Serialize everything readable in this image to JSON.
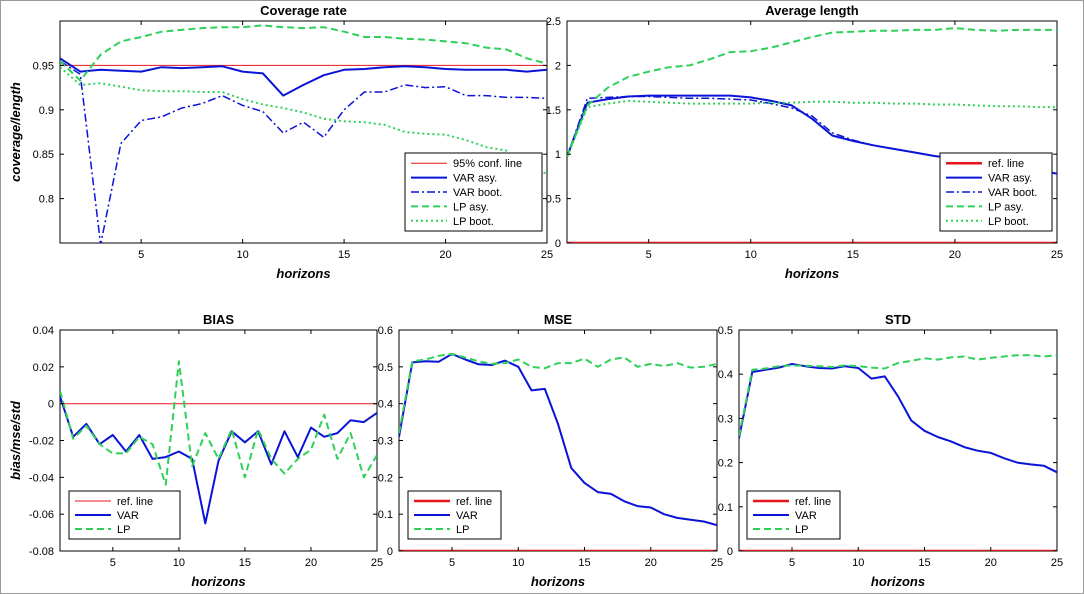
{
  "chart_data": [
    {
      "type": "line",
      "title": "Coverage rate",
      "xlabel": "horizons",
      "ylabel": "coverage/length",
      "xlim": [
        1,
        25
      ],
      "ylim": [
        0.75,
        1.0
      ],
      "xticks": [
        5,
        10,
        15,
        20,
        25
      ],
      "yticks": [
        0.8,
        0.85,
        0.9,
        0.95
      ],
      "ytick_labels": [
        "0.8",
        "0.85",
        "0.9",
        "0.95"
      ],
      "legend_position": "lower-right",
      "x": [
        1,
        2,
        3,
        4,
        5,
        6,
        7,
        8,
        9,
        10,
        11,
        12,
        13,
        14,
        15,
        16,
        17,
        18,
        19,
        20,
        21,
        22,
        23,
        24,
        25
      ],
      "series": [
        {
          "name": "95% conf. line",
          "color": "#e8141b",
          "style": "solid",
          "width": 1,
          "values": [
            0.95,
            0.95,
            0.95,
            0.95,
            0.95,
            0.95,
            0.95,
            0.95,
            0.95,
            0.95,
            0.95,
            0.95,
            0.95,
            0.95,
            0.95,
            0.95,
            0.95,
            0.95,
            0.95,
            0.95,
            0.95,
            0.95,
            0.95,
            0.95,
            0.95
          ]
        },
        {
          "name": "VAR asy.",
          "color": "#0a14d6",
          "style": "solid",
          "width": 2,
          "values": [
            0.958,
            0.943,
            0.945,
            0.944,
            0.943,
            0.948,
            0.947,
            0.948,
            0.949,
            0.943,
            0.941,
            0.916,
            0.928,
            0.939,
            0.945,
            0.946,
            0.948,
            0.949,
            0.948,
            0.946,
            0.945,
            0.945,
            0.945,
            0.943,
            0.945
          ]
        },
        {
          "name": "VAR boot.",
          "color": "#0a14d6",
          "style": "dashdot",
          "width": 1.5,
          "values": [
            0.955,
            0.94,
            0.748,
            0.862,
            0.888,
            0.892,
            0.902,
            0.907,
            0.916,
            0.905,
            0.898,
            0.874,
            0.886,
            0.869,
            0.9,
            0.92,
            0.92,
            0.928,
            0.925,
            0.926,
            0.916,
            0.916,
            0.914,
            0.914,
            0.913
          ]
        },
        {
          "name": "LP asy.",
          "color": "#2fd05a",
          "style": "dashed",
          "width": 2,
          "values": [
            0.955,
            0.933,
            0.962,
            0.977,
            0.982,
            0.988,
            0.99,
            0.992,
            0.993,
            0.993,
            0.995,
            0.993,
            0.992,
            0.993,
            0.988,
            0.982,
            0.982,
            0.98,
            0.979,
            0.977,
            0.975,
            0.97,
            0.968,
            0.958,
            0.952
          ]
        },
        {
          "name": "LP boot.",
          "color": "#2fd05a",
          "style": "dotted",
          "width": 2,
          "values": [
            0.948,
            0.928,
            0.93,
            0.926,
            0.922,
            0.921,
            0.921,
            0.92,
            0.92,
            0.912,
            0.906,
            0.902,
            0.897,
            0.89,
            0.887,
            0.886,
            0.883,
            0.875,
            0.873,
            0.872,
            0.866,
            0.858,
            0.854,
            0.836,
            0.828
          ]
        }
      ]
    },
    {
      "type": "line",
      "title": "Average length",
      "xlabel": "horizons",
      "ylabel": "",
      "xlim": [
        1,
        25
      ],
      "ylim": [
        0,
        2.5
      ],
      "xticks": [
        5,
        10,
        15,
        20,
        25
      ],
      "yticks": [
        0,
        0.5,
        1,
        1.5,
        2,
        2.5
      ],
      "ytick_labels": [
        "0",
        "0.5",
        "1",
        "1.5",
        "2",
        "2.5"
      ],
      "legend_position": "lower-right",
      "x": [
        1,
        2,
        3,
        4,
        5,
        6,
        7,
        8,
        9,
        10,
        11,
        12,
        13,
        14,
        15,
        16,
        17,
        18,
        19,
        20,
        21,
        22,
        23,
        24,
        25
      ],
      "series": [
        {
          "name": "ref. line",
          "color": "#e8141b",
          "style": "solid",
          "width": 2.5,
          "values": [
            0,
            0,
            0,
            0,
            0,
            0,
            0,
            0,
            0,
            0,
            0,
            0,
            0,
            0,
            0,
            0,
            0,
            0,
            0,
            0,
            0,
            0,
            0,
            0,
            0
          ]
        },
        {
          "name": "VAR asy.",
          "color": "#0a14d6",
          "style": "solid",
          "width": 2,
          "values": [
            0.97,
            1.58,
            1.62,
            1.65,
            1.66,
            1.66,
            1.66,
            1.66,
            1.66,
            1.64,
            1.6,
            1.55,
            1.4,
            1.21,
            1.15,
            1.1,
            1.06,
            1.02,
            0.98,
            0.95,
            0.92,
            0.89,
            0.85,
            0.82,
            0.78
          ]
        },
        {
          "name": "VAR boot.",
          "color": "#0a14d6",
          "style": "dashdot",
          "width": 1.5,
          "values": [
            0.97,
            1.63,
            1.64,
            1.65,
            1.65,
            1.64,
            1.63,
            1.63,
            1.62,
            1.61,
            1.57,
            1.52,
            1.43,
            1.24,
            1.16,
            1.1,
            1.06,
            1.02,
            0.98,
            0.95,
            0.92,
            0.89,
            0.85,
            0.82,
            0.78
          ]
        },
        {
          "name": "LP asy.",
          "color": "#2fd05a",
          "style": "dashed",
          "width": 2,
          "values": [
            0.97,
            1.55,
            1.75,
            1.87,
            1.93,
            1.98,
            2.0,
            2.07,
            2.15,
            2.16,
            2.2,
            2.26,
            2.32,
            2.37,
            2.38,
            2.39,
            2.39,
            2.4,
            2.4,
            2.42,
            2.4,
            2.39,
            2.4,
            2.4,
            2.4
          ]
        },
        {
          "name": "LP boot.",
          "color": "#2fd05a",
          "style": "dotted",
          "width": 2,
          "values": [
            0.97,
            1.53,
            1.57,
            1.6,
            1.59,
            1.58,
            1.57,
            1.57,
            1.57,
            1.57,
            1.58,
            1.58,
            1.59,
            1.59,
            1.58,
            1.58,
            1.57,
            1.57,
            1.56,
            1.56,
            1.55,
            1.54,
            1.54,
            1.53,
            1.53
          ]
        }
      ]
    },
    {
      "type": "line",
      "title": "BIAS",
      "xlabel": "horizons",
      "ylabel": "bias/mse/std",
      "xlim": [
        1,
        25
      ],
      "ylim": [
        -0.08,
        0.04
      ],
      "xticks": [
        5,
        10,
        15,
        20,
        25
      ],
      "yticks": [
        -0.08,
        -0.06,
        -0.04,
        -0.02,
        0,
        0.02,
        0.04
      ],
      "ytick_labels": [
        "-0.08",
        "-0.06",
        "-0.04",
        "-0.02",
        "0",
        "0.02",
        "0.04"
      ],
      "legend_position": "lower-left",
      "x": [
        1,
        2,
        3,
        4,
        5,
        6,
        7,
        8,
        9,
        10,
        11,
        12,
        13,
        14,
        15,
        16,
        17,
        18,
        19,
        20,
        21,
        22,
        23,
        24,
        25
      ],
      "series": [
        {
          "name": "ref. line",
          "color": "#e8141b",
          "style": "solid",
          "width": 1,
          "values": [
            0,
            0,
            0,
            0,
            0,
            0,
            0,
            0,
            0,
            0,
            0,
            0,
            0,
            0,
            0,
            0,
            0,
            0,
            0,
            0,
            0,
            0,
            0,
            0,
            0
          ]
        },
        {
          "name": "VAR",
          "color": "#0a14d6",
          "style": "solid",
          "width": 2,
          "values": [
            0.004,
            -0.018,
            -0.011,
            -0.022,
            -0.017,
            -0.026,
            -0.017,
            -0.03,
            -0.029,
            -0.026,
            -0.03,
            -0.065,
            -0.031,
            -0.015,
            -0.021,
            -0.015,
            -0.033,
            -0.015,
            -0.029,
            -0.013,
            -0.018,
            -0.016,
            -0.009,
            -0.01,
            -0.005
          ]
        },
        {
          "name": "LP",
          "color": "#2fd05a",
          "style": "dashed",
          "width": 2,
          "values": [
            0.007,
            -0.019,
            -0.012,
            -0.022,
            -0.027,
            -0.027,
            -0.018,
            -0.022,
            -0.044,
            0.023,
            -0.034,
            -0.016,
            -0.03,
            -0.014,
            -0.04,
            -0.014,
            -0.03,
            -0.038,
            -0.03,
            -0.025,
            -0.006,
            -0.03,
            -0.016,
            -0.04,
            -0.028
          ]
        }
      ]
    },
    {
      "type": "line",
      "title": "MSE",
      "xlabel": "horizons",
      "ylabel": "",
      "xlim": [
        1,
        25
      ],
      "ylim": [
        0,
        0.6
      ],
      "xticks": [
        5,
        10,
        15,
        20,
        25
      ],
      "yticks": [
        0,
        0.1,
        0.2,
        0.3,
        0.4,
        0.5,
        0.6
      ],
      "ytick_labels": [
        "0",
        "0.1",
        "0.2",
        "0.3",
        "0.4",
        "0.5",
        "0.6"
      ],
      "legend_position": "lower-left",
      "x": [
        1,
        2,
        3,
        4,
        5,
        6,
        7,
        8,
        9,
        10,
        11,
        12,
        13,
        14,
        15,
        16,
        17,
        18,
        19,
        20,
        21,
        22,
        23,
        24,
        25
      ],
      "series": [
        {
          "name": "ref. line",
          "color": "#e8141b",
          "style": "solid",
          "width": 2.5,
          "values": [
            0,
            0,
            0,
            0,
            0,
            0,
            0,
            0,
            0,
            0,
            0,
            0,
            0,
            0,
            0,
            0,
            0,
            0,
            0,
            0,
            0,
            0,
            0,
            0,
            0
          ]
        },
        {
          "name": "VAR",
          "color": "#0a14d6",
          "style": "solid",
          "width": 2,
          "values": [
            0.31,
            0.512,
            0.515,
            0.514,
            0.535,
            0.52,
            0.507,
            0.505,
            0.517,
            0.5,
            0.436,
            0.44,
            0.345,
            0.225,
            0.185,
            0.16,
            0.155,
            0.135,
            0.122,
            0.118,
            0.1,
            0.09,
            0.085,
            0.08,
            0.07
          ]
        },
        {
          "name": "LP",
          "color": "#2fd05a",
          "style": "dashed",
          "width": 2,
          "values": [
            0.32,
            0.515,
            0.52,
            0.53,
            0.535,
            0.525,
            0.515,
            0.508,
            0.51,
            0.52,
            0.5,
            0.496,
            0.51,
            0.51,
            0.522,
            0.5,
            0.52,
            0.526,
            0.5,
            0.508,
            0.502,
            0.51,
            0.498,
            0.5,
            0.508
          ]
        }
      ]
    },
    {
      "type": "line",
      "title": "STD",
      "xlabel": "horizons",
      "ylabel": "",
      "xlim": [
        1,
        25
      ],
      "ylim": [
        0,
        0.5
      ],
      "xticks": [
        5,
        10,
        15,
        20,
        25
      ],
      "yticks": [
        0,
        0.1,
        0.2,
        0.3,
        0.4,
        0.5
      ],
      "ytick_labels": [
        "0",
        "0.1",
        "0.2",
        "0.3",
        "0.4",
        "0.5"
      ],
      "legend_position": "lower-left",
      "x": [
        1,
        2,
        3,
        4,
        5,
        6,
        7,
        8,
        9,
        10,
        11,
        12,
        13,
        14,
        15,
        16,
        17,
        18,
        19,
        20,
        21,
        22,
        23,
        24,
        25
      ],
      "series": [
        {
          "name": "ref. line",
          "color": "#e8141b",
          "style": "solid",
          "width": 2.5,
          "values": [
            0,
            0,
            0,
            0,
            0,
            0,
            0,
            0,
            0,
            0,
            0,
            0,
            0,
            0,
            0,
            0,
            0,
            0,
            0,
            0,
            0,
            0,
            0,
            0,
            0
          ]
        },
        {
          "name": "VAR",
          "color": "#0a14d6",
          "style": "solid",
          "width": 2,
          "values": [
            0.255,
            0.405,
            0.41,
            0.415,
            0.423,
            0.418,
            0.414,
            0.413,
            0.418,
            0.414,
            0.39,
            0.395,
            0.35,
            0.295,
            0.272,
            0.258,
            0.248,
            0.235,
            0.227,
            0.222,
            0.21,
            0.2,
            0.196,
            0.193,
            0.178
          ]
        },
        {
          "name": "LP",
          "color": "#2fd05a",
          "style": "dashed",
          "width": 2,
          "values": [
            0.26,
            0.41,
            0.413,
            0.418,
            0.42,
            0.419,
            0.418,
            0.416,
            0.42,
            0.418,
            0.415,
            0.413,
            0.425,
            0.43,
            0.436,
            0.433,
            0.438,
            0.44,
            0.433,
            0.437,
            0.44,
            0.443,
            0.443,
            0.44,
            0.443
          ]
        }
      ]
    }
  ]
}
